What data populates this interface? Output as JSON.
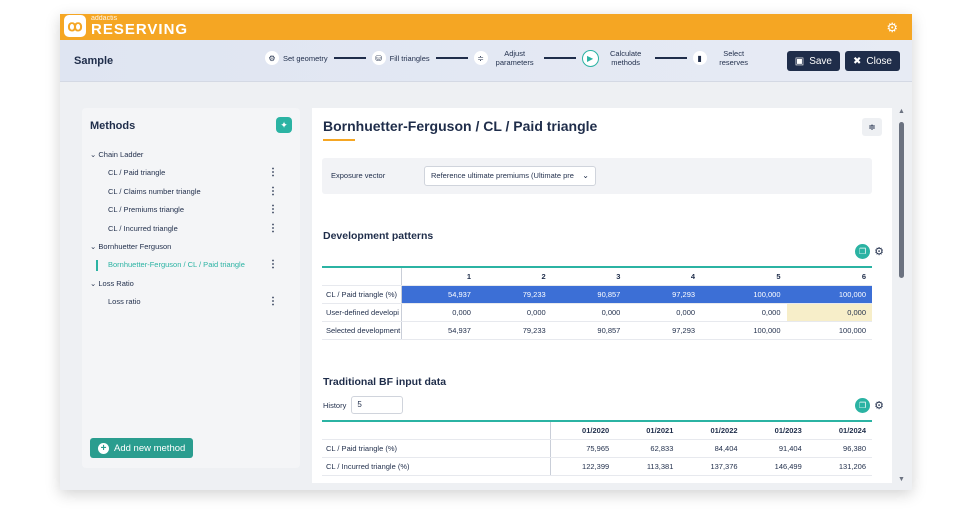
{
  "app": {
    "brand_small": "addactis",
    "brand": "RESERVING"
  },
  "workflow": {
    "project": "Sample",
    "steps": [
      {
        "label": "Set geometry"
      },
      {
        "label": "Fill triangles"
      },
      {
        "label": "Adjust parameters"
      },
      {
        "label": "Calculate methods"
      },
      {
        "label": "Select reserves"
      }
    ],
    "save_label": "Save",
    "close_label": "Close"
  },
  "methods": {
    "title": "Methods",
    "groups": [
      {
        "label": "Chain Ladder",
        "items": [
          "CL / Paid triangle",
          "CL / Claims number triangle",
          "CL / Premiums triangle",
          "CL / Incurred triangle"
        ]
      },
      {
        "label": "Bornhuetter Ferguson",
        "items": [
          "Bornhuetter-Ferguson / CL / Paid triangle"
        ]
      },
      {
        "label": "Loss Ratio",
        "items": [
          "Loss ratio"
        ]
      }
    ],
    "add_label": "Add new method"
  },
  "main": {
    "title": "Bornhuetter-Ferguson / CL / Paid triangle",
    "exposure_label": "Exposure vector",
    "exposure_value": "Reference ultimate premiums (Ultimate pre",
    "dev_title": "Development patterns",
    "dev_headers": [
      "",
      "1",
      "2",
      "3",
      "4",
      "5",
      "6"
    ],
    "dev_rows": [
      [
        "CL / Paid triangle (%)",
        "54,937",
        "79,233",
        "90,857",
        "97,293",
        "100,000",
        "100,000"
      ],
      [
        "User-defined developi",
        "0,000",
        "0,000",
        "0,000",
        "0,000",
        "0,000",
        "0,000"
      ],
      [
        "Selected development",
        "54,937",
        "79,233",
        "90,857",
        "97,293",
        "100,000",
        "100,000"
      ]
    ],
    "bf_title": "Traditional BF input data",
    "history_label": "History",
    "history_value": "5",
    "bf_headers": [
      "",
      "01/2020",
      "01/2021",
      "01/2022",
      "01/2023",
      "01/2024"
    ],
    "bf_rows": [
      [
        "CL / Paid triangle (%)",
        "75,965",
        "62,833",
        "84,404",
        "91,404",
        "96,380"
      ],
      [
        "CL / Incurred triangle (%)",
        "122,399",
        "113,381",
        "137,376",
        "146,499",
        "131,206"
      ]
    ]
  },
  "colors": {
    "brand": "#f5a623",
    "accent": "#2bb3a3",
    "navy": "#1f2d4a",
    "highlight_row": "#3c6fd6",
    "user_cell": "#f7eec9"
  }
}
